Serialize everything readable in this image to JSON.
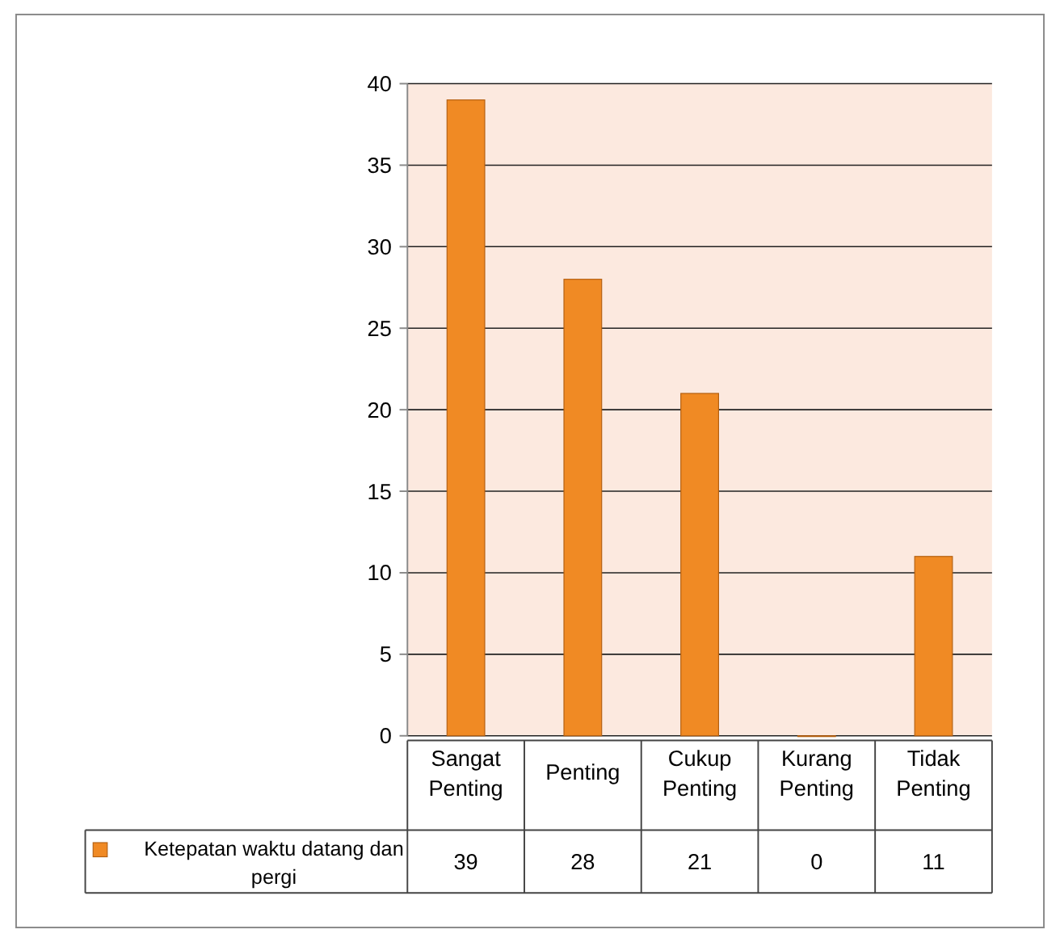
{
  "chart_data": {
    "type": "bar",
    "categories": [
      "Sangat Penting",
      "Penting",
      "Cukup Penting",
      "Kurang Penting",
      "Tidak Penting"
    ],
    "series": [
      {
        "name": "Ketepatan waktu datang dan pergi",
        "color": "#f08a24",
        "values": [
          39,
          28,
          21,
          0,
          11
        ]
      }
    ],
    "ylim": [
      0,
      40
    ],
    "yticks": [
      0,
      5,
      10,
      15,
      20,
      25,
      30,
      35,
      40
    ],
    "grid": "y",
    "legend": "bottom",
    "data_labels": true
  }
}
